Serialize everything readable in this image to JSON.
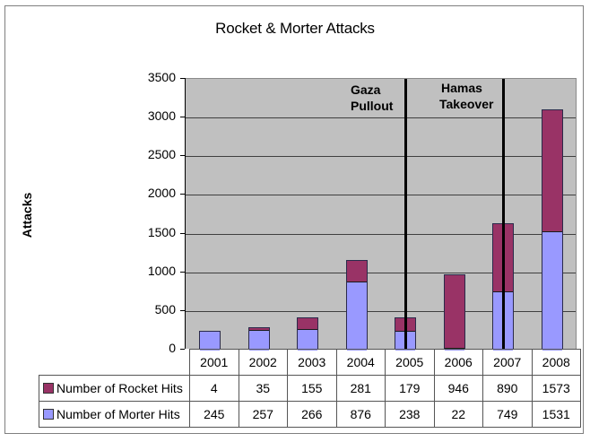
{
  "chart_data": {
    "type": "bar",
    "stacked": true,
    "title": "Rocket & Morter Attacks",
    "xlabel": "",
    "ylabel": "Attacks",
    "ylim": [
      0,
      3500
    ],
    "yticks": [
      "0",
      "500",
      "1000",
      "1500",
      "2000",
      "2500",
      "3000",
      "3500"
    ],
    "grid": true,
    "legend_position": "data-table",
    "categories": [
      "2001",
      "2002",
      "2003",
      "2004",
      "2005",
      "2006",
      "2007",
      "2008"
    ],
    "series": [
      {
        "name": "Number of Rocket Hits",
        "color": "#993366",
        "values": [
          4,
          35,
          155,
          281,
          179,
          946,
          890,
          1573
        ]
      },
      {
        "name": "Number of Morter Hits",
        "color": "#9999FF",
        "values": [
          245,
          257,
          266,
          876,
          238,
          22,
          749,
          1531
        ]
      }
    ],
    "annotations": [
      {
        "text": "Gaza Pullout",
        "x": "2005",
        "line": true
      },
      {
        "text": "Hamas Takeover",
        "x": "2007",
        "line": true
      }
    ]
  },
  "colors": {
    "plot_bg": "#C0C0C0",
    "rocket": "#993366",
    "morter": "#9999FF",
    "annotation_line": "#000000"
  },
  "labels": {
    "title": "Rocket & Morter Attacks",
    "ylabel": "Attacks",
    "annotation_gaza_line1": "Gaza",
    "annotation_gaza_line2": "Pullout",
    "annotation_hamas_line1": "Hamas",
    "annotation_hamas_line2": "Takeover"
  }
}
